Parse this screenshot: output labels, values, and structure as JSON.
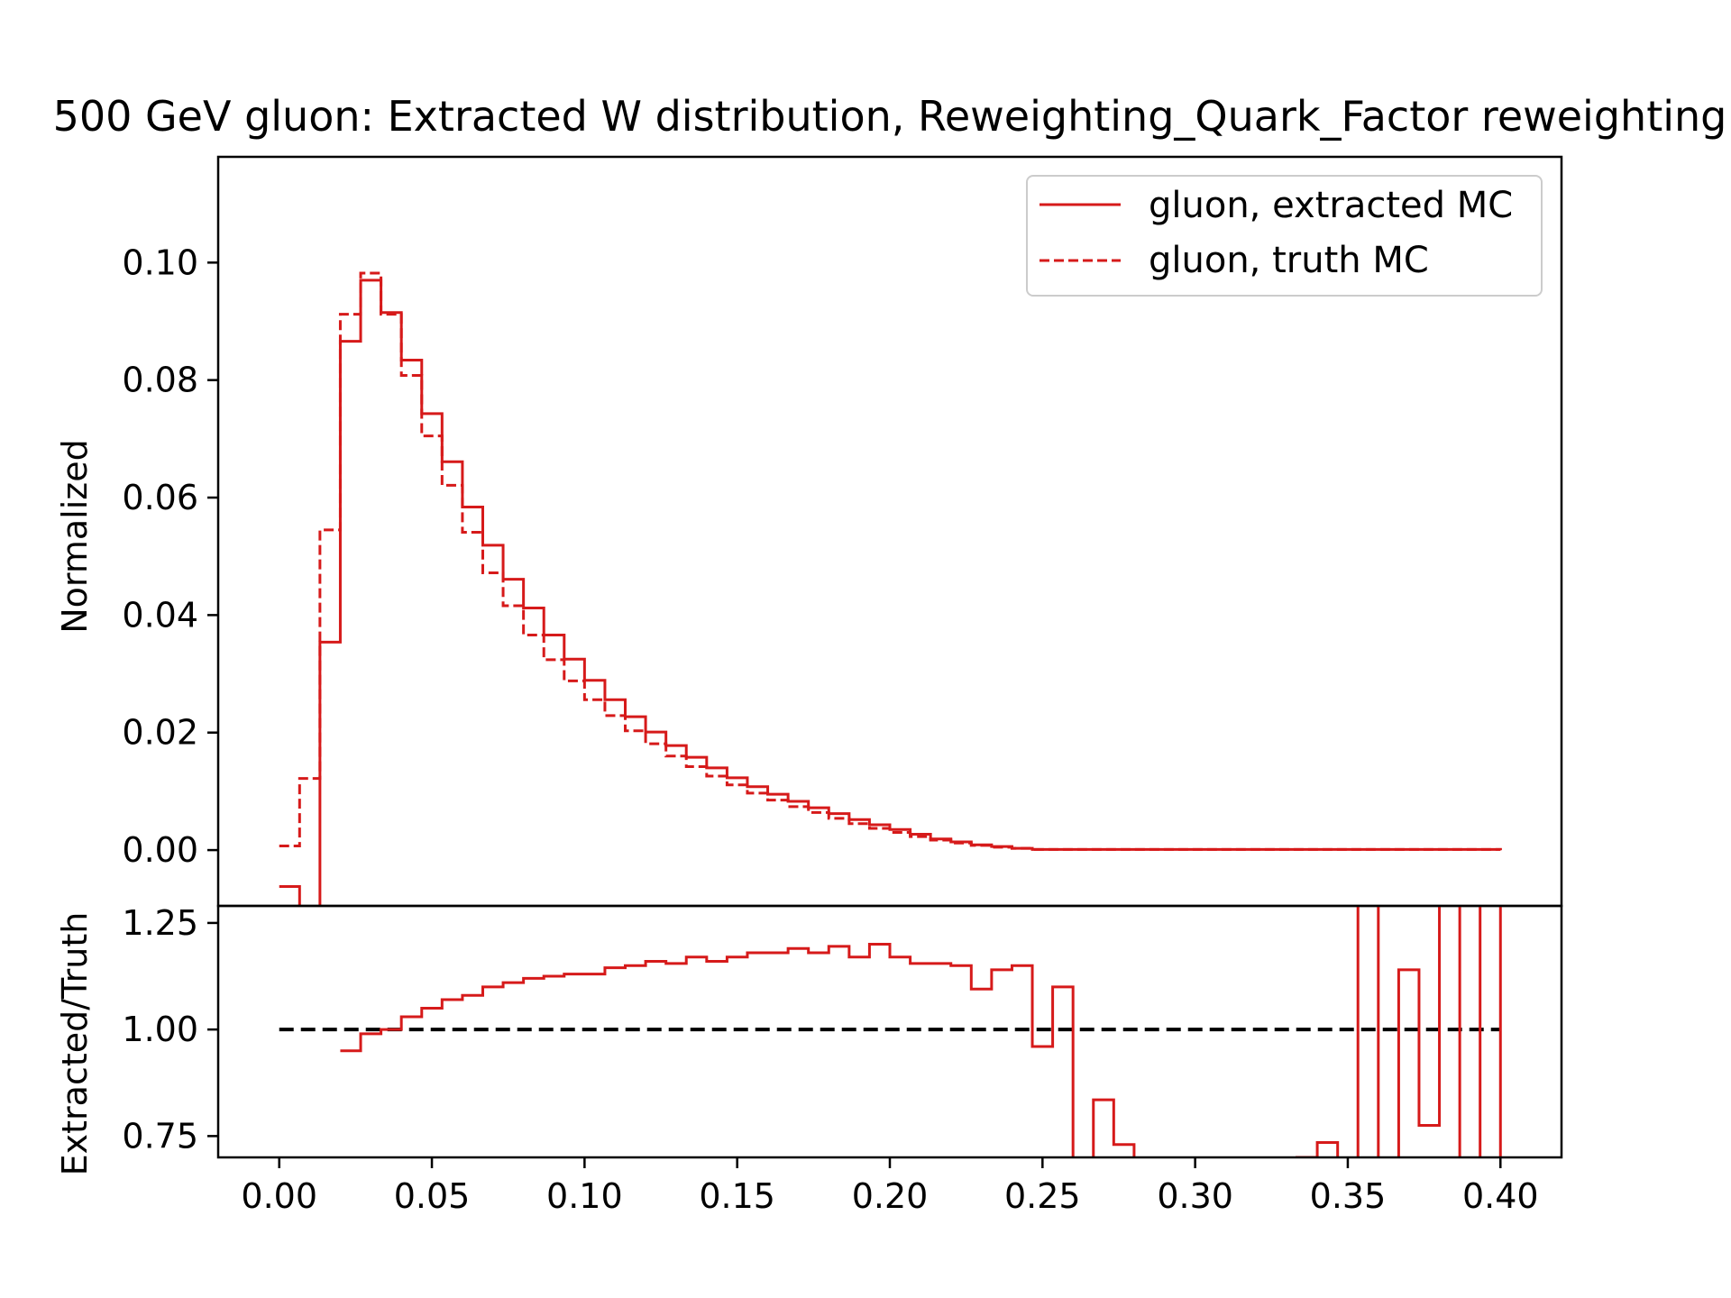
{
  "chart_data": [
    {
      "type": "line",
      "title": "500 GeV gluon: Extracted W distribution, Reweighting_Quark_Factor reweighting",
      "xlabel": "",
      "ylabel": "Normalized",
      "xlim": [
        -0.02,
        0.42
      ],
      "ylim": [
        -0.0095,
        0.118
      ],
      "yticks": [
        "0.00",
        "0.02",
        "0.04",
        "0.06",
        "0.08",
        "0.10"
      ],
      "legend_position": "upper right",
      "series_colors": [
        "#d61a1a",
        "#d61a1a"
      ],
      "series": [
        {
          "name": "gluon, extracted MC",
          "style": "solid step",
          "bin_edges": [
            0.0,
            0.00667,
            0.01333,
            0.02,
            0.02667,
            0.03333,
            0.04,
            0.04667,
            0.05333,
            0.06,
            0.06667,
            0.07333,
            0.08,
            0.08667,
            0.09333,
            0.1,
            0.10667,
            0.11333,
            0.12,
            0.12667,
            0.13333,
            0.14,
            0.14667,
            0.15333,
            0.16,
            0.16667,
            0.17333,
            0.18,
            0.18667,
            0.19333,
            0.2,
            0.20667,
            0.21333,
            0.22,
            0.22667,
            0.23333,
            0.24,
            0.24667,
            0.4
          ],
          "values": [
            -0.0062,
            -0.0115,
            0.0354,
            0.0866,
            0.097,
            0.0915,
            0.0834,
            0.0743,
            0.0661,
            0.0584,
            0.0519,
            0.0461,
            0.0412,
            0.0366,
            0.0325,
            0.0289,
            0.0256,
            0.0227,
            0.0201,
            0.0178,
            0.0158,
            0.014,
            0.0123,
            0.0108,
            0.0095,
            0.0083,
            0.0072,
            0.0062,
            0.0052,
            0.0043,
            0.0035,
            0.0027,
            0.0019,
            0.0014,
            0.0009,
            0.0006,
            0.0003,
            0.0001,
            0.0
          ]
        },
        {
          "name": "gluon, truth MC",
          "style": "dashed step",
          "bin_edges": [
            0.0,
            0.00667,
            0.01333,
            0.02,
            0.02667,
            0.03333,
            0.04,
            0.04667,
            0.05333,
            0.06,
            0.06667,
            0.07333,
            0.08,
            0.08667,
            0.09333,
            0.1,
            0.10667,
            0.11333,
            0.12,
            0.12667,
            0.13333,
            0.14,
            0.14667,
            0.15333,
            0.16,
            0.16667,
            0.17333,
            0.18,
            0.18667,
            0.19333,
            0.2,
            0.20667,
            0.21333,
            0.22,
            0.22667,
            0.23333,
            0.24,
            0.24667,
            0.4
          ],
          "values": [
            0.0007,
            0.0122,
            0.0545,
            0.0912,
            0.0982,
            0.0912,
            0.0808,
            0.0705,
            0.0621,
            0.0541,
            0.0472,
            0.0416,
            0.0366,
            0.0324,
            0.0288,
            0.0256,
            0.0229,
            0.0203,
            0.0181,
            0.016,
            0.0142,
            0.0126,
            0.0111,
            0.0097,
            0.0085,
            0.0074,
            0.0064,
            0.0054,
            0.0045,
            0.0037,
            0.003,
            0.0023,
            0.0017,
            0.0012,
            0.0008,
            0.0005,
            0.0003,
            0.0001,
            0.0
          ]
        }
      ]
    },
    {
      "type": "line",
      "title": "",
      "xlabel": "",
      "ylabel": "Extracted/Truth",
      "xlim": [
        -0.02,
        0.42
      ],
      "ylim": [
        0.7,
        1.29
      ],
      "xticks": [
        "0.00",
        "0.05",
        "0.10",
        "0.15",
        "0.20",
        "0.25",
        "0.30",
        "0.35",
        "0.40"
      ],
      "yticks": [
        "0.75",
        "1.00",
        "1.25"
      ],
      "reference_line": {
        "y": 1.0,
        "x_range": [
          0.0,
          0.4
        ],
        "color": "#000000",
        "style": "dashed"
      },
      "series_colors": [
        "#d61a1a"
      ],
      "series": [
        {
          "style": "solid step",
          "bin_edges": [
            0.02,
            0.02667,
            0.03333,
            0.04,
            0.04667,
            0.05333,
            0.06,
            0.06667,
            0.07333,
            0.08,
            0.08667,
            0.09333,
            0.1,
            0.10667,
            0.11333,
            0.12,
            0.12667,
            0.13333,
            0.14,
            0.14667,
            0.15333,
            0.16,
            0.16667,
            0.17333,
            0.18,
            0.18667,
            0.19333,
            0.2,
            0.20667,
            0.21333,
            0.22,
            0.22667,
            0.23333,
            0.24,
            0.24667,
            0.25333,
            0.26,
            0.26667,
            0.27333,
            0.28,
            0.28667,
            0.33333,
            0.34,
            0.34667,
            0.35333,
            0.36,
            0.36667,
            0.37333,
            0.38,
            0.38667,
            0.39333,
            0.4
          ],
          "values": [
            0.95,
            0.99,
            1.0,
            1.03,
            1.05,
            1.07,
            1.08,
            1.1,
            1.11,
            1.12,
            1.125,
            1.13,
            1.13,
            1.145,
            1.15,
            1.16,
            1.155,
            1.17,
            1.16,
            1.17,
            1.18,
            1.18,
            1.19,
            1.18,
            1.195,
            1.17,
            1.2,
            1.17,
            1.155,
            1.155,
            1.15,
            1.095,
            1.14,
            1.15,
            0.96,
            1.1,
            0.5,
            0.835,
            0.73,
            0.5,
            0.5,
            0.7,
            0.735,
            0.5,
            1.5,
            0.5,
            1.14,
            0.775,
            1.5,
            0.5,
            1.5,
            0.5
          ]
        }
      ]
    }
  ]
}
